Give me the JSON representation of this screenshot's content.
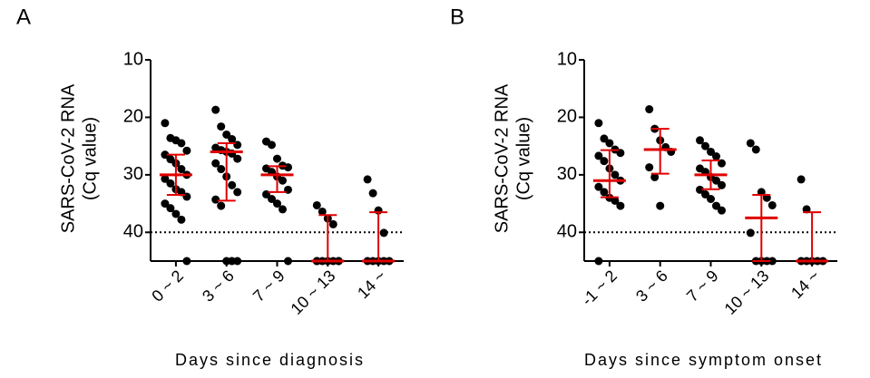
{
  "chart_data": [
    {
      "type": "dotplot",
      "panel": "A",
      "ylabel": [
        "SARS-CoV-2 RNA",
        "(Cq value)"
      ],
      "xlabel": "Days since diagnosis",
      "categories": [
        "0 ~ 2",
        "3 ~ 6",
        "7 ~ 9",
        "10 ~ 13",
        "14 ~"
      ],
      "values": [
        [
          21,
          23.6,
          24,
          24.5,
          25.8,
          26.5,
          27.3,
          28,
          29,
          30,
          30.7,
          31.5,
          32.5,
          33,
          33.8,
          35,
          35.8,
          36.8,
          37.8,
          45
        ],
        [
          18.7,
          21.6,
          23,
          23.8,
          24.8,
          25.3,
          25.7,
          26,
          26.3,
          27.2,
          28,
          29,
          30.3,
          31.8,
          33,
          34.3,
          35.4,
          45,
          45,
          45
        ],
        [
          24.2,
          24.8,
          27.2,
          28.4,
          28.7,
          28.9,
          29.5,
          30.3,
          31,
          32.6,
          33.4,
          34.2,
          35,
          36,
          45
        ],
        [
          35.3,
          36.4,
          37.6,
          38.6,
          45,
          45,
          45,
          45,
          45,
          45,
          45
        ],
        [
          30.8,
          33.2,
          36.2,
          40.1,
          45,
          45,
          45,
          45,
          45
        ]
      ],
      "medians": [
        30,
        26,
        30,
        45,
        45
      ],
      "q1": [
        26.5,
        24.5,
        28.5,
        37,
        36.5
      ],
      "q3": [
        33.5,
        34.5,
        33,
        45,
        45
      ],
      "dot_color": "#000000",
      "bar_color": "#e00000",
      "ylim": [
        45,
        10
      ],
      "yticks": [
        10,
        20,
        30,
        40
      ],
      "ref_line": 40
    },
    {
      "type": "dotplot",
      "panel": "B",
      "ylabel": [
        "SARS-CoV-2 RNA",
        "(Cq value)"
      ],
      "xlabel": "Days since symptom onset",
      "categories": [
        "-1 ~ 2",
        "3 ~ 6",
        "7 ~ 9",
        "10 ~ 13",
        "14 ~"
      ],
      "values": [
        [
          21,
          23.7,
          24.5,
          25.6,
          26.2,
          26.7,
          27.6,
          28.9,
          30,
          31,
          32.1,
          33,
          34,
          34.5,
          35.4,
          45
        ],
        [
          18.6,
          22,
          24,
          25.2,
          26,
          28.7,
          30.4,
          35.4
        ],
        [
          24,
          25,
          26,
          26.8,
          28,
          28.9,
          29.5,
          30.4,
          31,
          31.8,
          32.6,
          33.4,
          34.2,
          35.4,
          36.2
        ],
        [
          24.5,
          25.6,
          33,
          34,
          35.3,
          40.1,
          45,
          45,
          45,
          45
        ],
        [
          30.8,
          36,
          45,
          45,
          45,
          45,
          45
        ]
      ],
      "medians": [
        31,
        25.6,
        30,
        37.5,
        45
      ],
      "q1": [
        25.7,
        22,
        27.5,
        33.5,
        36.5
      ],
      "q3": [
        33.9,
        29.8,
        32.5,
        45,
        45
      ],
      "dot_color": "#000000",
      "bar_color": "#e00000",
      "ylim": [
        45,
        10
      ],
      "yticks": [
        10,
        20,
        30,
        40
      ],
      "ref_line": 40
    }
  ]
}
